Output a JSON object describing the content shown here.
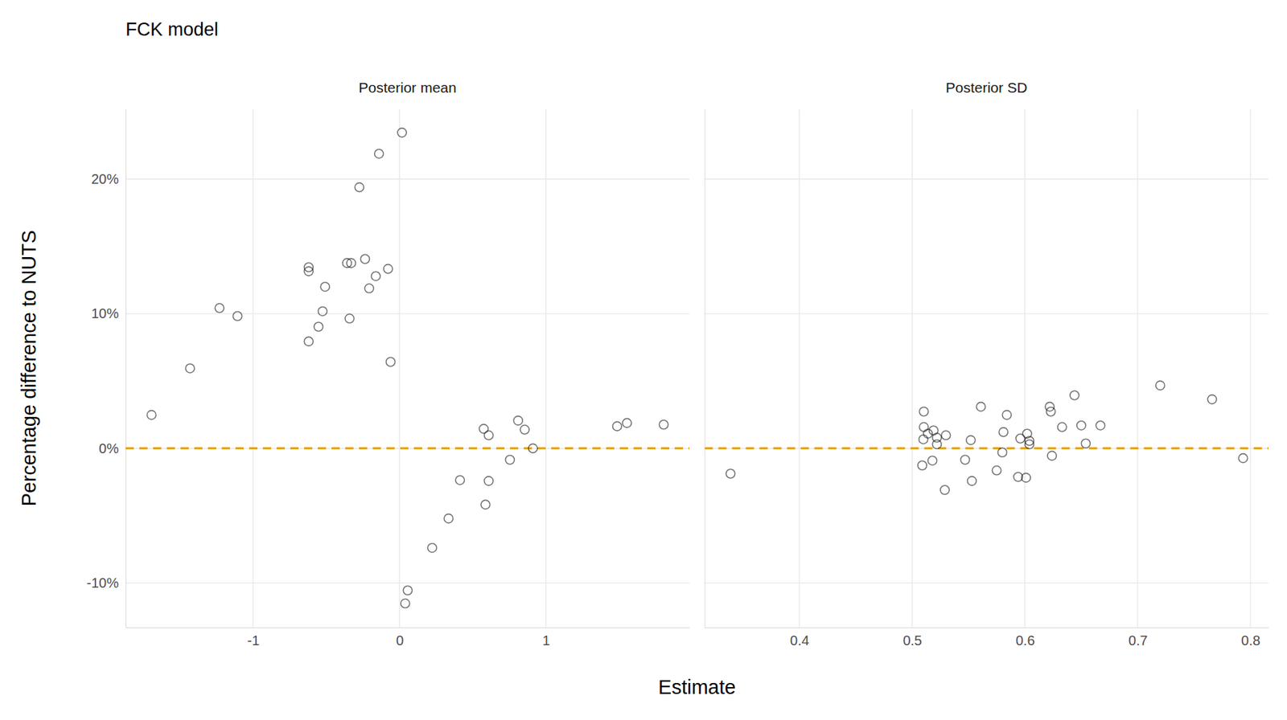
{
  "chart_data": {
    "type": "scatter",
    "title": "FCK model",
    "x_label": "Estimate",
    "y_label": "Percentage difference to NUTS",
    "ylim": [
      -13.3,
      25.2
    ],
    "yticks": [
      {
        "value": -10,
        "label": "-10%"
      },
      {
        "value": 0,
        "label": "0%"
      },
      {
        "value": 10,
        "label": "10%"
      },
      {
        "value": 20,
        "label": "20%"
      }
    ],
    "grid": true,
    "marker": "circle",
    "color": "#000000",
    "reference_line": {
      "value": 0,
      "color": "#E69F00",
      "line_style": "dashed"
    },
    "panels": [
      {
        "title": "Posterior mean",
        "xlim": [
          -1.87,
          1.98
        ],
        "xticks": [
          -1,
          0,
          1
        ],
        "x": [
          -1.693,
          -1.43,
          -1.229,
          -1.106,
          -0.62,
          -0.62,
          -0.62,
          -0.553,
          -0.525,
          -0.508,
          -0.358,
          -0.33,
          -0.341,
          -0.235,
          -0.274,
          -0.207,
          -0.162,
          -0.14,
          -0.078,
          -0.061,
          0.017,
          0.056,
          0.039,
          0.223,
          0.335,
          0.413,
          0.575,
          0.609,
          0.609,
          0.587,
          0.754,
          0.81,
          0.855,
          0.911,
          1.486,
          1.553,
          1.804
        ],
        "values": [
          2.48,
          5.94,
          10.42,
          9.82,
          13.45,
          13.15,
          7.94,
          9.03,
          10.18,
          12.0,
          13.76,
          13.76,
          9.64,
          14.06,
          19.39,
          11.88,
          12.79,
          21.88,
          13.33,
          6.42,
          23.45,
          -10.55,
          -11.52,
          -7.39,
          -5.21,
          -2.36,
          1.45,
          0.97,
          -2.42,
          -4.18,
          -0.85,
          2.06,
          1.39,
          0.0,
          1.64,
          1.88,
          1.76
        ]
      },
      {
        "title": "Posterior SD",
        "xlim": [
          0.316,
          0.816
        ],
        "xticks": [
          0.4,
          0.5,
          0.6,
          0.7,
          0.8
        ],
        "x": [
          0.339,
          0.5104,
          0.5104,
          0.514,
          0.51,
          0.519,
          0.509,
          0.518,
          0.522,
          0.522,
          0.53,
          0.529,
          0.552,
          0.553,
          0.547,
          0.561,
          0.575,
          0.58,
          0.581,
          0.584,
          0.594,
          0.601,
          0.596,
          0.602,
          0.604,
          0.604,
          0.622,
          0.623,
          0.624,
          0.633,
          0.644,
          0.65,
          0.654,
          0.667,
          0.72,
          0.766,
          0.7935
        ],
        "values": [
          -1.88,
          2.73,
          1.58,
          1.09,
          0.67,
          1.33,
          -1.27,
          -0.91,
          0.3,
          0.79,
          0.97,
          -3.09,
          0.61,
          -2.42,
          -0.85,
          3.09,
          -1.64,
          -0.3,
          1.21,
          2.48,
          -2.12,
          -2.18,
          0.73,
          1.09,
          0.55,
          0.3,
          3.09,
          2.73,
          -0.55,
          1.58,
          3.94,
          1.7,
          0.36,
          1.7,
          4.67,
          3.64,
          -0.73
        ]
      }
    ]
  }
}
